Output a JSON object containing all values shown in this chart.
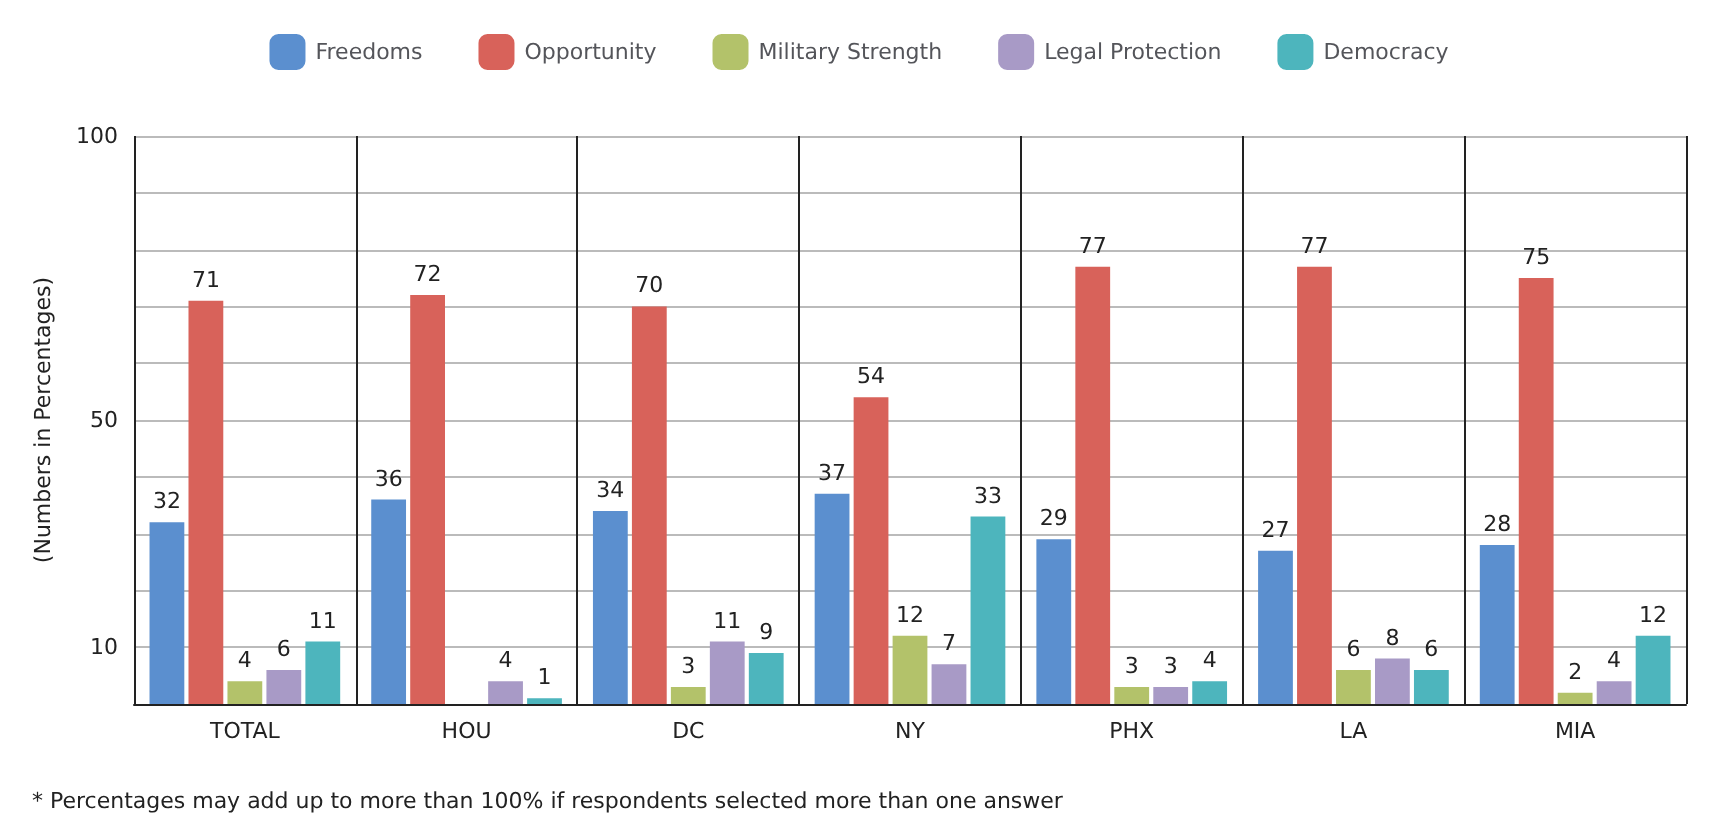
{
  "chart_data": {
    "type": "bar",
    "ylabel": "(Numbers in Percentages)",
    "categories": [
      "TOTAL",
      "HOU",
      "DC",
      "NY",
      "PHX",
      "LA",
      "MIA"
    ],
    "series": [
      {
        "name": "Freedoms",
        "color": "#5b8fcf",
        "values": [
          32,
          36,
          34,
          37,
          29,
          27,
          28
        ]
      },
      {
        "name": "Opportunity",
        "color": "#d8625a",
        "values": [
          71,
          72,
          70,
          54,
          77,
          77,
          75
        ]
      },
      {
        "name": "Military Strength",
        "color": "#b3c26a",
        "values": [
          4,
          null,
          3,
          12,
          3,
          6,
          2
        ]
      },
      {
        "name": "Legal Protection",
        "color": "#a89ac6",
        "values": [
          6,
          4,
          11,
          7,
          3,
          8,
          4
        ]
      },
      {
        "name": "Democracy",
        "color": "#4db5bd",
        "values": [
          11,
          1,
          9,
          33,
          4,
          6,
          12
        ]
      }
    ],
    "ylim": [
      0,
      100
    ],
    "yticks": [
      {
        "value": 0,
        "label": null
      },
      10,
      {
        "value": 20,
        "label": null
      },
      {
        "value": 30,
        "label": null
      },
      {
        "value": 40,
        "label": null
      },
      50,
      {
        "value": 60,
        "label": null
      },
      {
        "value": 70,
        "label": null
      },
      {
        "value": 80,
        "label": null
      },
      {
        "value": 90,
        "label": null
      },
      100
    ],
    "grid": true,
    "legend": "top",
    "data_labels": true,
    "annotations": [
      "* Percentages may add up to more than 100% if respondents selected more than one answer"
    ]
  }
}
